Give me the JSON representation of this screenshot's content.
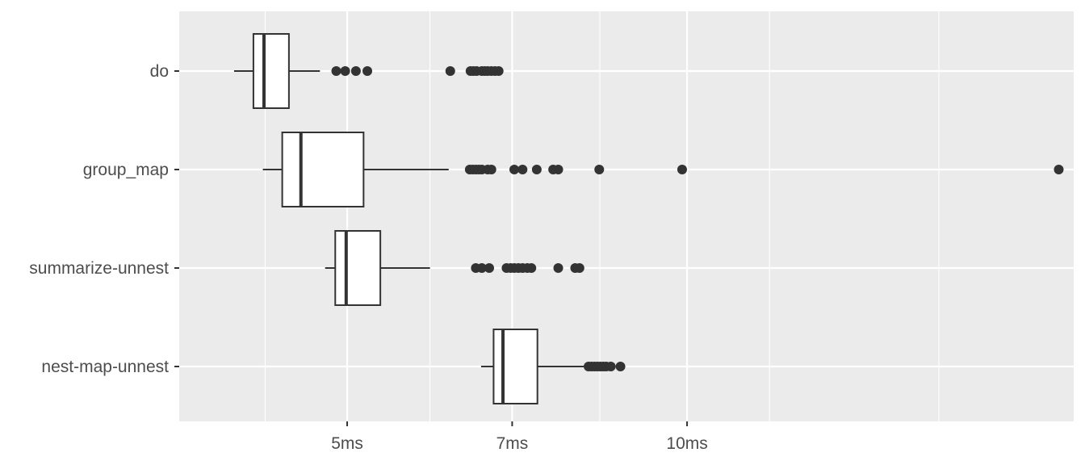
{
  "chart_data": {
    "type": "boxplot",
    "orientation": "horizontal",
    "x_scale": "log",
    "xlim": [
      3.55,
      22.0
    ],
    "x_ticks": [
      {
        "value": 5,
        "label": "5ms"
      },
      {
        "value": 7,
        "label": "7ms"
      },
      {
        "value": 10,
        "label": "10ms"
      }
    ],
    "x_minor_ticks": [
      4.23,
      5.92,
      8.37,
      11.83,
      16.71
    ],
    "grid": true,
    "legend": "none",
    "title": "",
    "xlabel": "",
    "ylabel": "",
    "colors": {
      "panel": "#ebebeb",
      "grid": "#ffffff",
      "box_fill": "#ffffff",
      "line": "#333333",
      "outlier": "#333333",
      "text": "#4d4d4d"
    },
    "categories": [
      "do",
      "group_map",
      "summarize-unnest",
      "nest-map-unnest"
    ],
    "boxes": [
      {
        "category": "do",
        "whisker_low": 3.97,
        "q1": 4.13,
        "median": 4.22,
        "q3": 4.44,
        "whisker_high": 4.73,
        "outliers": [
          4.89,
          4.98,
          5.09,
          5.21,
          6.17,
          6.43,
          6.47,
          6.51,
          6.58,
          6.62,
          6.66,
          6.71,
          6.76,
          6.81
        ]
      },
      {
        "category": "group_map",
        "whisker_low": 4.21,
        "q1": 4.38,
        "median": 4.55,
        "q3": 5.17,
        "whisker_high": 6.15,
        "outliers": [
          6.42,
          6.46,
          6.5,
          6.54,
          6.58,
          6.66,
          6.71,
          7.03,
          7.15,
          7.36,
          7.61,
          7.69,
          8.36,
          9.9,
          21.34
        ]
      },
      {
        "category": "summarize-unnest",
        "whisker_low": 4.78,
        "q1": 4.88,
        "median": 4.99,
        "q3": 5.35,
        "whisker_high": 5.92,
        "outliers": [
          6.5,
          6.58,
          6.68,
          6.92,
          6.98,
          7.03,
          7.09,
          7.15,
          7.22,
          7.28,
          7.69,
          7.96,
          8.03
        ]
      },
      {
        "category": "nest-map-unnest",
        "whisker_low": 6.57,
        "q1": 6.74,
        "median": 6.87,
        "q3": 7.37,
        "whisker_high": 8.13,
        "outliers": [
          8.18,
          8.23,
          8.28,
          8.33,
          8.38,
          8.43,
          8.48,
          8.56,
          8.73
        ]
      }
    ]
  }
}
